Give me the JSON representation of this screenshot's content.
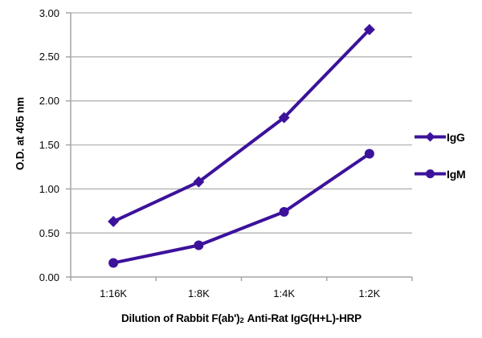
{
  "chart_data": {
    "type": "line",
    "title": "",
    "xlabel": "Dilution of Rabbit F(ab')2 Anti-Rat IgG(H+L)-HRP",
    "xlabel_parts": {
      "pre": "Dilution of Rabbit F(ab')",
      "sub": "2",
      "post": " Anti-Rat IgG(H+L)-HRP"
    },
    "ylabel": "O.D. at 405 nm",
    "categories": [
      "1:16K",
      "1:8K",
      "1:4K",
      "1:2K"
    ],
    "series": [
      {
        "name": "IgG",
        "marker": "diamond",
        "color": "#3C129B",
        "values": [
          0.63,
          1.08,
          1.81,
          2.81
        ]
      },
      {
        "name": "IgM",
        "marker": "circle",
        "color": "#3C129B",
        "values": [
          0.16,
          0.36,
          0.74,
          1.4
        ]
      }
    ],
    "ylim": [
      0,
      3
    ],
    "ytick_step": 0.5,
    "ytick_labels": [
      "0.00",
      "0.50",
      "1.00",
      "1.50",
      "2.00",
      "2.50",
      "3.00"
    ],
    "grid": true,
    "legend_position": "right",
    "colors": {
      "series_line": "#3C129B",
      "gridline": "#b3b3b3",
      "axis": "#a6a6a6",
      "text": "#000000",
      "background": "#ffffff"
    }
  }
}
